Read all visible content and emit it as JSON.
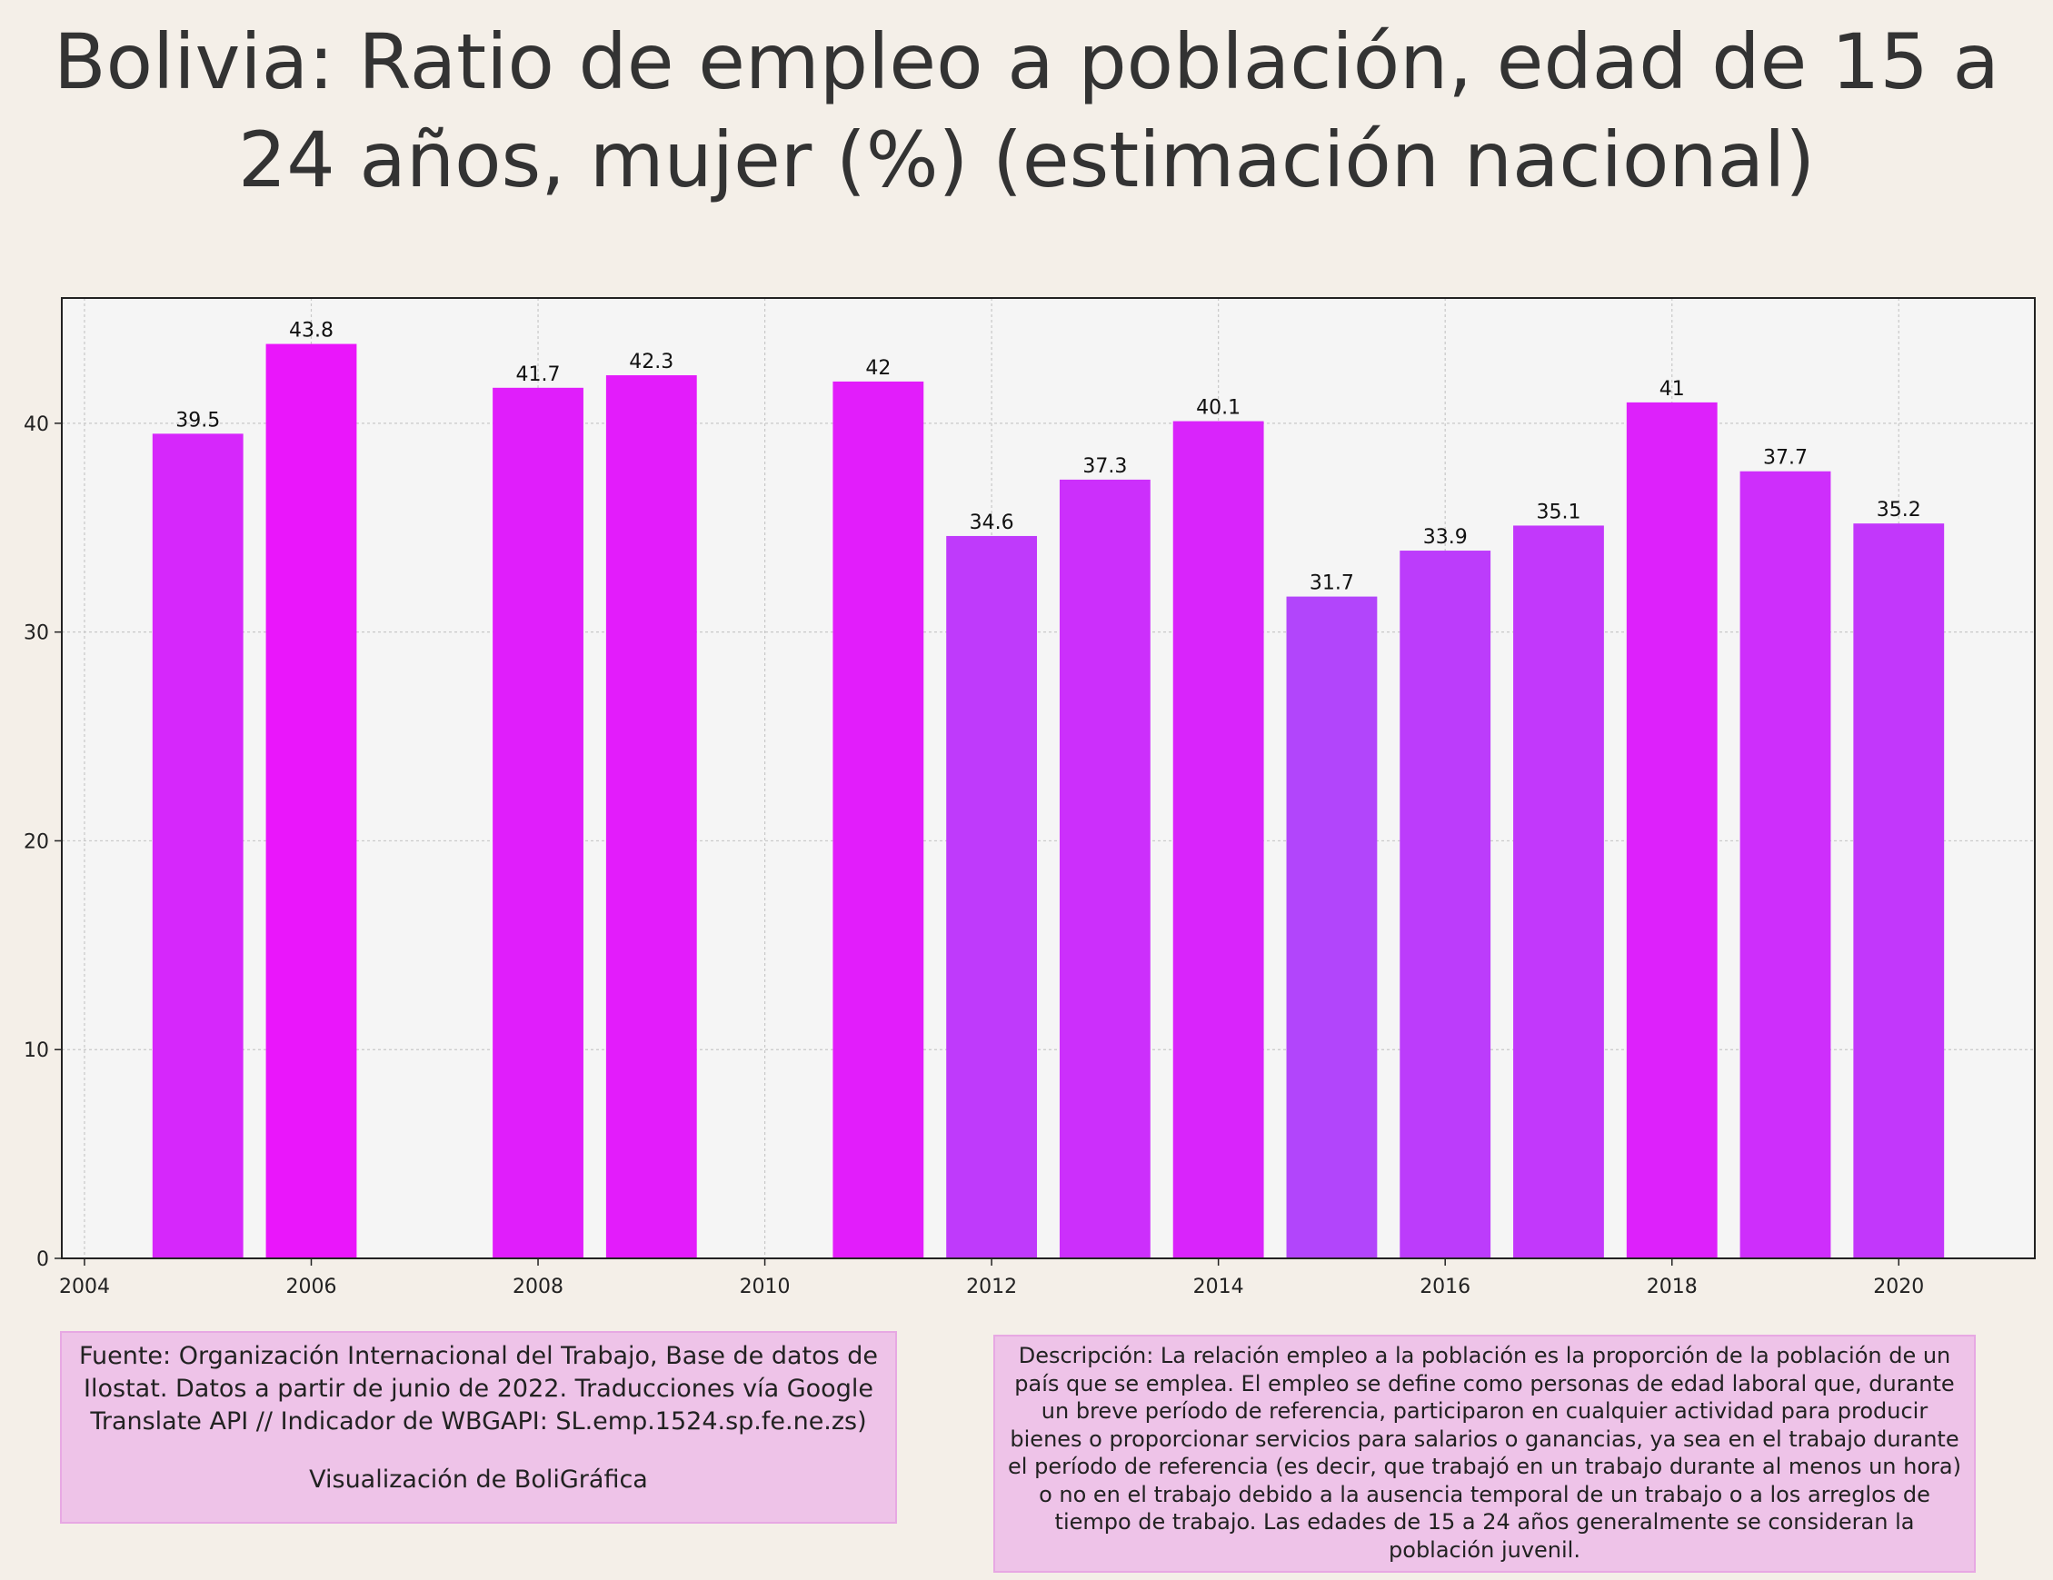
{
  "title": "Bolivia:  Ratio de empleo a población, edad de 15 a 24 años, mujer (%) (estimación nacional)",
  "source_text": "Fuente: Organización Internacional del Trabajo, Base de datos de Ilostat. Datos a partir de junio de 2022. Traducciones vía Google Translate API // Indicador de WBGAPI: SL.emp.1524.sp.fe.ne.zs)",
  "credit_text": "Visualización de BoliGráfica",
  "description_text": "Descripción: La relación empleo a la población es la proporción de la población de un país que se emplea. El empleo se define como personas de edad laboral que, durante un breve período de referencia, participaron en cualquier actividad para producir bienes o proporcionar servicios para salarios o ganancias, ya sea en el trabajo durante el período de referencia (es decir, que trabajó en un trabajo durante al menos un hora) o no en el trabajo debido a la ausencia temporal de un trabajo o a los arreglos de tiempo de trabajo. Las edades de 15 a 24 años generalmente se consideran la población juvenil.",
  "chart_data": {
    "type": "bar",
    "x": [
      2005,
      2006,
      2008,
      2009,
      2011,
      2012,
      2013,
      2014,
      2015,
      2016,
      2017,
      2018,
      2019,
      2020
    ],
    "values": [
      39.5,
      43.8,
      41.7,
      42.3,
      42,
      34.6,
      37.3,
      40.1,
      31.7,
      33.9,
      35.1,
      41,
      37.7,
      35.2
    ],
    "data_labels": [
      "39.5",
      "43.8",
      "41.7",
      "42.3",
      "42",
      "34.6",
      "37.3",
      "40.1",
      "31.7",
      "33.9",
      "35.1",
      "41",
      "37.7",
      "35.2"
    ],
    "xticks": [
      2004,
      2006,
      2008,
      2010,
      2012,
      2014,
      2016,
      2018,
      2020
    ],
    "yticks": [
      0,
      10,
      20,
      30,
      40
    ],
    "xlim": [
      2003.8,
      2021.2
    ],
    "ylim": [
      0,
      46
    ],
    "grid": true,
    "color_low": "#b245fb",
    "color_high": "#ea16fb",
    "plot_background": "#f5f5f5"
  }
}
